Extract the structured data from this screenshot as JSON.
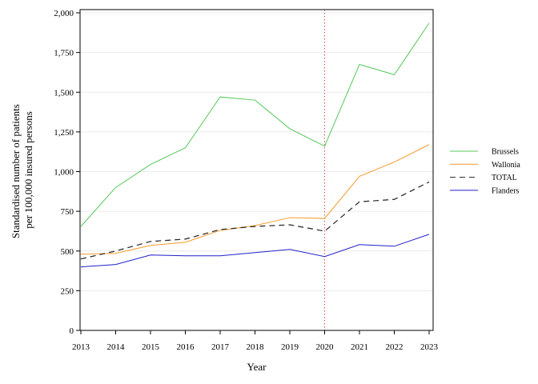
{
  "chart_data": {
    "type": "line",
    "xlabel": "Year",
    "ylabel": [
      "Standardised number of patients",
      "per 100,000 insured persons"
    ],
    "x": [
      2013,
      2014,
      2015,
      2016,
      2017,
      2018,
      2019,
      2020,
      2021,
      2022,
      2023
    ],
    "x_tick_labels": [
      "2013",
      "2014",
      "2015",
      "2016",
      "2017",
      "2018",
      "2019",
      "2020",
      "2021",
      "2022",
      "2023"
    ],
    "ylim": [
      0,
      2000
    ],
    "y_ticks": [
      0,
      250,
      500,
      750,
      1000,
      1250,
      1500,
      1750,
      2000
    ],
    "y_tick_labels": [
      "0",
      "250",
      "500",
      "750",
      "1,000",
      "1,250",
      "1,500",
      "1,750",
      "2,000"
    ],
    "grid": "horizontal",
    "legend_position": "right",
    "reference_line": {
      "x": 2020,
      "style": "dotted",
      "color": "#d9534f"
    },
    "series": [
      {
        "name": "Brussels",
        "color": "#55c85a",
        "dash": "solid",
        "values": [
          655,
          900,
          1045,
          1150,
          1470,
          1450,
          1270,
          1160,
          1675,
          1610,
          1935
        ]
      },
      {
        "name": "Wallonia",
        "color": "#f59a2c",
        "dash": "solid",
        "values": [
          480,
          485,
          535,
          555,
          630,
          660,
          710,
          705,
          970,
          1060,
          1170
        ]
      },
      {
        "name": "TOTAL",
        "color": "#222222",
        "dash": "dashed",
        "values": [
          450,
          500,
          560,
          575,
          635,
          655,
          665,
          625,
          810,
          825,
          935
        ]
      },
      {
        "name": "Flanders",
        "color": "#1f1fcc",
        "dash": "solid",
        "values": [
          400,
          415,
          475,
          470,
          470,
          490,
          510,
          465,
          540,
          530,
          605
        ]
      }
    ]
  }
}
